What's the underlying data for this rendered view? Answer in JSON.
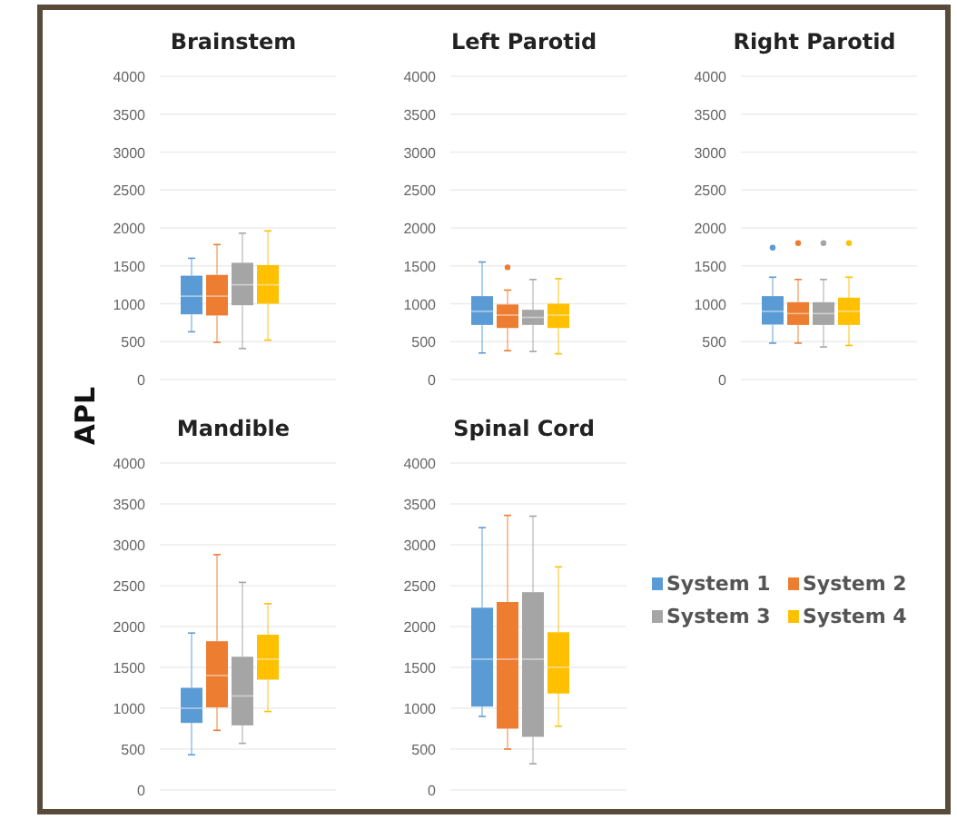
{
  "chart_data": [
    {
      "type": "box",
      "title": "Brainstem",
      "ylabel": "APL",
      "categories": [
        null
      ],
      "ylim": [
        0,
        4000
      ],
      "yticks": [
        0,
        500,
        1000,
        1500,
        2000,
        2500,
        3000,
        3500,
        4000
      ],
      "grid": "y",
      "legend": false,
      "series": [
        {
          "color": "#5b9bd5",
          "boxes": [
            {
              "low": 630,
              "q1": 860,
              "median": 1100,
              "q3": 1370,
              "high": 1600
            }
          ]
        },
        {
          "color": "#ed7d31",
          "boxes": [
            {
              "low": 490,
              "q1": 845,
              "median": 1100,
              "q3": 1380,
              "high": 1780
            }
          ]
        },
        {
          "color": "#a5a5a5",
          "boxes": [
            {
              "low": 410,
              "q1": 980,
              "median": 1250,
              "q3": 1540,
              "high": 1930
            }
          ]
        },
        {
          "color": "#ffc000",
          "boxes": [
            {
              "low": 520,
              "q1": 1000,
              "median": 1250,
              "q3": 1510,
              "high": 1960
            }
          ]
        }
      ]
    },
    {
      "type": "box",
      "title": "Left Parotid",
      "categories": [
        null
      ],
      "ylim": [
        0,
        4000
      ],
      "yticks": [
        0,
        500,
        1000,
        1500,
        2000,
        2500,
        3000,
        3500,
        4000
      ],
      "grid": "y",
      "legend": false,
      "series": [
        {
          "color": "#5b9bd5",
          "boxes": [
            {
              "low": 350,
              "q1": 720,
              "median": 900,
              "q3": 1100,
              "high": 1550
            }
          ]
        },
        {
          "color": "#ed7d31",
          "boxes": [
            {
              "low": 380,
              "q1": 680,
              "median": 850,
              "q3": 990,
              "high": 1180,
              "outliers": [
                1480
              ]
            }
          ]
        },
        {
          "color": "#a5a5a5",
          "boxes": [
            {
              "low": 370,
              "q1": 720,
              "median": 820,
              "q3": 920,
              "high": 1320
            }
          ]
        },
        {
          "color": "#ffc000",
          "boxes": [
            {
              "low": 340,
              "q1": 680,
              "median": 850,
              "q3": 1000,
              "high": 1330
            }
          ]
        }
      ]
    },
    {
      "type": "box",
      "title": "Right Parotid",
      "categories": [
        null
      ],
      "ylim": [
        0,
        4000
      ],
      "yticks": [
        0,
        500,
        1000,
        1500,
        2000,
        2500,
        3000,
        3500,
        4000
      ],
      "grid": "y",
      "legend": false,
      "series": [
        {
          "color": "#5b9bd5",
          "boxes": [
            {
              "low": 480,
              "q1": 725,
              "median": 900,
              "q3": 1100,
              "high": 1350,
              "outliers": [
                1740
              ]
            }
          ]
        },
        {
          "color": "#ed7d31",
          "boxes": [
            {
              "low": 480,
              "q1": 720,
              "median": 870,
              "q3": 1020,
              "high": 1320,
              "outliers": [
                1800
              ]
            }
          ]
        },
        {
          "color": "#a5a5a5",
          "boxes": [
            {
              "low": 430,
              "q1": 720,
              "median": 870,
              "q3": 1020,
              "high": 1320,
              "outliers": [
                1800
              ]
            }
          ]
        },
        {
          "color": "#ffc000",
          "boxes": [
            {
              "low": 450,
              "q1": 720,
              "median": 900,
              "q3": 1080,
              "high": 1350,
              "outliers": [
                1800
              ]
            }
          ]
        }
      ]
    },
    {
      "type": "box",
      "title": "Mandible",
      "categories": [
        null
      ],
      "ylim": [
        0,
        4000
      ],
      "yticks": [
        0,
        500,
        1000,
        1500,
        2000,
        2500,
        3000,
        3500,
        4000
      ],
      "grid": "y",
      "legend": false,
      "series": [
        {
          "color": "#5b9bd5",
          "boxes": [
            {
              "low": 430,
              "q1": 820,
              "median": 1000,
              "q3": 1250,
              "high": 1920
            }
          ]
        },
        {
          "color": "#ed7d31",
          "boxes": [
            {
              "low": 730,
              "q1": 1010,
              "median": 1400,
              "q3": 1820,
              "high": 2880
            }
          ]
        },
        {
          "color": "#a5a5a5",
          "boxes": [
            {
              "low": 570,
              "q1": 790,
              "median": 1150,
              "q3": 1630,
              "high": 2540
            }
          ]
        },
        {
          "color": "#ffc000",
          "boxes": [
            {
              "low": 960,
              "q1": 1350,
              "median": 1600,
              "q3": 1900,
              "high": 2280
            }
          ]
        }
      ]
    },
    {
      "type": "box",
      "title": "Spinal Cord",
      "categories": [
        null
      ],
      "ylim": [
        0,
        4000
      ],
      "yticks": [
        0,
        500,
        1000,
        1500,
        2000,
        2500,
        3000,
        3500,
        4000
      ],
      "grid": "y",
      "legend": "right",
      "series": [
        {
          "name": "System 1",
          "color": "#5b9bd5",
          "boxes": [
            {
              "low": 900,
              "q1": 1020,
              "median": 1600,
              "q3": 2230,
              "high": 3210
            }
          ]
        },
        {
          "name": "System 2",
          "color": "#ed7d31",
          "boxes": [
            {
              "low": 500,
              "q1": 750,
              "median": 1600,
              "q3": 2300,
              "high": 3360
            }
          ]
        },
        {
          "name": "System 3",
          "color": "#a5a5a5",
          "boxes": [
            {
              "low": 320,
              "q1": 650,
              "median": 1600,
              "q3": 2420,
              "high": 3350
            }
          ]
        },
        {
          "name": "System 4",
          "color": "#ffc000",
          "boxes": [
            {
              "low": 780,
              "q1": 1180,
              "median": 1500,
              "q3": 1930,
              "high": 2730
            }
          ]
        }
      ]
    }
  ]
}
